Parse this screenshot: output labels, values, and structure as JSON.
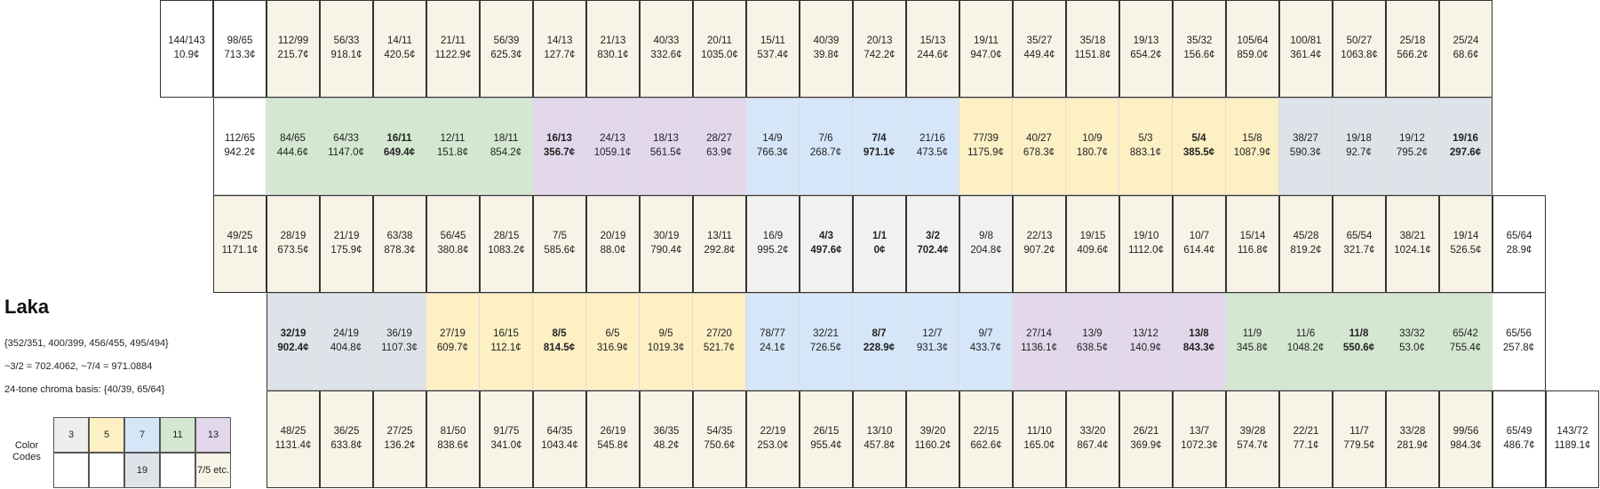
{
  "title": "Laka",
  "info": [
    "{352/351, 400/399, 456/455, 495/494}",
    "~3/2 = 702.4062, ~7/4 = 971.0884",
    "24-tone chroma basis: {40/39, 65/64}"
  ],
  "legend": {
    "label": "Color Codes",
    "cells": [
      {
        "text": "3",
        "color": "#eeeeee"
      },
      {
        "text": "5",
        "color": "#fdf0c4"
      },
      {
        "text": "7",
        "color": "#d6e6f9"
      },
      {
        "text": "11",
        "color": "#d4e8d1"
      },
      {
        "text": "13",
        "color": "#e3d7ec"
      },
      {
        "text": "",
        "color": "#ffffff"
      },
      {
        "text": "",
        "color": "#ffffff"
      },
      {
        "text": "19",
        "color": "#dde3e9"
      },
      {
        "text": "",
        "color": "#ffffff"
      },
      {
        "text": "7/5 etc.",
        "color": "#f7f3e6"
      }
    ]
  },
  "colors": {
    "w": "#ffffff",
    "c": "#f7f3e6",
    "g": "#f1f1f1",
    "y": "#fdf0c4",
    "b": "#d6e6f9",
    "gr": "#d4e8d1",
    "p": "#e3d7ec",
    "s": "#dde3e9"
  },
  "rows": [
    {
      "start": 0,
      "cells": [
        {
          "r": "144/143",
          "c": "10.9¢",
          "k": "w"
        },
        {
          "r": "98/65",
          "c": "713.3¢",
          "k": "w"
        },
        {
          "r": "112/99",
          "c": "215.7¢",
          "k": "c"
        },
        {
          "r": "56/33",
          "c": "918.1¢",
          "k": "c"
        },
        {
          "r": "14/11",
          "c": "420.5¢",
          "k": "c"
        },
        {
          "r": "21/11",
          "c": "1122.9¢",
          "k": "c"
        },
        {
          "r": "56/39",
          "c": "625.3¢",
          "k": "c"
        },
        {
          "r": "14/13",
          "c": "127.7¢",
          "k": "c"
        },
        {
          "r": "21/13",
          "c": "830.1¢",
          "k": "c"
        },
        {
          "r": "40/33",
          "c": "332.6¢",
          "k": "c"
        },
        {
          "r": "20/11",
          "c": "1035.0¢",
          "k": "c"
        },
        {
          "r": "15/11",
          "c": "537.4¢",
          "k": "c"
        },
        {
          "r": "40/39",
          "c": "39.8¢",
          "k": "c"
        },
        {
          "r": "20/13",
          "c": "742.2¢",
          "k": "c"
        },
        {
          "r": "15/13",
          "c": "244.6¢",
          "k": "c"
        },
        {
          "r": "19/11",
          "c": "947.0¢",
          "k": "c"
        },
        {
          "r": "35/27",
          "c": "449.4¢",
          "k": "c"
        },
        {
          "r": "35/18",
          "c": "1151.8¢",
          "k": "c"
        },
        {
          "r": "19/13",
          "c": "654.2¢",
          "k": "c"
        },
        {
          "r": "35/32",
          "c": "156.6¢",
          "k": "c"
        },
        {
          "r": "105/64",
          "c": "859.0¢",
          "k": "c"
        },
        {
          "r": "100/81",
          "c": "361.4¢",
          "k": "c"
        },
        {
          "r": "50/27",
          "c": "1063.8¢",
          "k": "c"
        },
        {
          "r": "25/18",
          "c": "566.2¢",
          "k": "c"
        },
        {
          "r": "25/24",
          "c": "68.6¢",
          "k": "c"
        }
      ]
    },
    {
      "start": 1,
      "lit": true,
      "cells": [
        {
          "r": "112/65",
          "c": "942.2¢",
          "k": "w"
        },
        {
          "r": "84/65",
          "c": "444.6¢",
          "k": "gr"
        },
        {
          "r": "64/33",
          "c": "1147.0¢",
          "k": "gr"
        },
        {
          "r": "16/11",
          "c": "649.4¢",
          "k": "gr",
          "b": true
        },
        {
          "r": "12/11",
          "c": "151.8¢",
          "k": "gr"
        },
        {
          "r": "18/11",
          "c": "854.2¢",
          "k": "gr"
        },
        {
          "r": "16/13",
          "c": "356.7¢",
          "k": "p",
          "b": true
        },
        {
          "r": "24/13",
          "c": "1059.1¢",
          "k": "p"
        },
        {
          "r": "18/13",
          "c": "561.5¢",
          "k": "p"
        },
        {
          "r": "28/27",
          "c": "63.9¢",
          "k": "p"
        },
        {
          "r": "14/9",
          "c": "766.3¢",
          "k": "b"
        },
        {
          "r": "7/6",
          "c": "268.7¢",
          "k": "b"
        },
        {
          "r": "7/4",
          "c": "971.1¢",
          "k": "b",
          "b": true
        },
        {
          "r": "21/16",
          "c": "473.5¢",
          "k": "b"
        },
        {
          "r": "77/39",
          "c": "1175.9¢",
          "k": "y"
        },
        {
          "r": "40/27",
          "c": "678.3¢",
          "k": "y"
        },
        {
          "r": "10/9",
          "c": "180.7¢",
          "k": "y"
        },
        {
          "r": "5/3",
          "c": "883.1¢",
          "k": "y"
        },
        {
          "r": "5/4",
          "c": "385.5¢",
          "k": "y",
          "b": true
        },
        {
          "r": "15/8",
          "c": "1087.9¢",
          "k": "y"
        },
        {
          "r": "38/27",
          "c": "590.3¢",
          "k": "s"
        },
        {
          "r": "19/18",
          "c": "92.7¢",
          "k": "s"
        },
        {
          "r": "19/12",
          "c": "795.2¢",
          "k": "s"
        },
        {
          "r": "19/16",
          "c": "297.6¢",
          "k": "s",
          "b": true
        }
      ]
    },
    {
      "start": 1,
      "cells": [
        {
          "r": "49/25",
          "c": "1171.1¢",
          "k": "c"
        },
        {
          "r": "28/19",
          "c": "673.5¢",
          "k": "c"
        },
        {
          "r": "21/19",
          "c": "175.9¢",
          "k": "c"
        },
        {
          "r": "63/38",
          "c": "878.3¢",
          "k": "c"
        },
        {
          "r": "56/45",
          "c": "380.8¢",
          "k": "c"
        },
        {
          "r": "28/15",
          "c": "1083.2¢",
          "k": "c"
        },
        {
          "r": "7/5",
          "c": "585.6¢",
          "k": "c"
        },
        {
          "r": "20/19",
          "c": "88.0¢",
          "k": "c"
        },
        {
          "r": "30/19",
          "c": "790.4¢",
          "k": "c"
        },
        {
          "r": "13/11",
          "c": "292.8¢",
          "k": "c"
        },
        {
          "r": "16/9",
          "c": "995.2¢",
          "k": "g"
        },
        {
          "r": "4/3",
          "c": "497.6¢",
          "k": "g",
          "b": true
        },
        {
          "r": "1/1",
          "c": "0¢",
          "k": "g",
          "b": true
        },
        {
          "r": "3/2",
          "c": "702.4¢",
          "k": "g",
          "b": true
        },
        {
          "r": "9/8",
          "c": "204.8¢",
          "k": "g"
        },
        {
          "r": "22/13",
          "c": "907.2¢",
          "k": "c"
        },
        {
          "r": "19/15",
          "c": "409.6¢",
          "k": "c"
        },
        {
          "r": "19/10",
          "c": "1112.0¢",
          "k": "c"
        },
        {
          "r": "10/7",
          "c": "614.4¢",
          "k": "c"
        },
        {
          "r": "15/14",
          "c": "116.8¢",
          "k": "c"
        },
        {
          "r": "45/28",
          "c": "819.2¢",
          "k": "c"
        },
        {
          "r": "65/54",
          "c": "321.7¢",
          "k": "c"
        },
        {
          "r": "38/21",
          "c": "1024.1¢",
          "k": "c"
        },
        {
          "r": "19/14",
          "c": "526.5¢",
          "k": "c"
        },
        {
          "r": "65/64",
          "c": "28.9¢",
          "k": "w"
        }
      ]
    },
    {
      "start": 2,
      "lit": true,
      "cells": [
        {
          "r": "32/19",
          "c": "902.4¢",
          "k": "s",
          "b": true
        },
        {
          "r": "24/19",
          "c": "404.8¢",
          "k": "s"
        },
        {
          "r": "36/19",
          "c": "1107.3¢",
          "k": "s"
        },
        {
          "r": "27/19",
          "c": "609.7¢",
          "k": "y"
        },
        {
          "r": "16/15",
          "c": "112.1¢",
          "k": "y"
        },
        {
          "r": "8/5",
          "c": "814.5¢",
          "k": "y",
          "b": true
        },
        {
          "r": "6/5",
          "c": "316.9¢",
          "k": "y"
        },
        {
          "r": "9/5",
          "c": "1019.3¢",
          "k": "y"
        },
        {
          "r": "27/20",
          "c": "521.7¢",
          "k": "y"
        },
        {
          "r": "78/77",
          "c": "24.1¢",
          "k": "b"
        },
        {
          "r": "32/21",
          "c": "726.5¢",
          "k": "b"
        },
        {
          "r": "8/7",
          "c": "228.9¢",
          "k": "b",
          "b": true
        },
        {
          "r": "12/7",
          "c": "931.3¢",
          "k": "b"
        },
        {
          "r": "9/7",
          "c": "433.7¢",
          "k": "b"
        },
        {
          "r": "27/14",
          "c": "1136.1¢",
          "k": "p"
        },
        {
          "r": "13/9",
          "c": "638.5¢",
          "k": "p"
        },
        {
          "r": "13/12",
          "c": "140.9¢",
          "k": "p"
        },
        {
          "r": "13/8",
          "c": "843.3¢",
          "k": "p",
          "b": true
        },
        {
          "r": "11/9",
          "c": "345.8¢",
          "k": "gr"
        },
        {
          "r": "11/6",
          "c": "1048.2¢",
          "k": "gr"
        },
        {
          "r": "11/8",
          "c": "550.6¢",
          "k": "gr",
          "b": true
        },
        {
          "r": "33/32",
          "c": "53.0¢",
          "k": "gr"
        },
        {
          "r": "65/42",
          "c": "755.4¢",
          "k": "gr"
        },
        {
          "r": "65/56",
          "c": "257.8¢",
          "k": "w"
        }
      ]
    },
    {
      "start": 2,
      "cells": [
        {
          "r": "48/25",
          "c": "1131.4¢",
          "k": "c"
        },
        {
          "r": "36/25",
          "c": "633.8¢",
          "k": "c"
        },
        {
          "r": "27/25",
          "c": "136.2¢",
          "k": "c"
        },
        {
          "r": "81/50",
          "c": "838.6¢",
          "k": "c"
        },
        {
          "r": "91/75",
          "c": "341.0¢",
          "k": "c"
        },
        {
          "r": "64/35",
          "c": "1043.4¢",
          "k": "c"
        },
        {
          "r": "26/19",
          "c": "545.8¢",
          "k": "c"
        },
        {
          "r": "36/35",
          "c": "48.2¢",
          "k": "c"
        },
        {
          "r": "54/35",
          "c": "750.6¢",
          "k": "c"
        },
        {
          "r": "22/19",
          "c": "253.0¢",
          "k": "c"
        },
        {
          "r": "26/15",
          "c": "955.4¢",
          "k": "c"
        },
        {
          "r": "13/10",
          "c": "457.8¢",
          "k": "c"
        },
        {
          "r": "39/20",
          "c": "1160.2¢",
          "k": "c"
        },
        {
          "r": "22/15",
          "c": "662.6¢",
          "k": "c"
        },
        {
          "r": "11/10",
          "c": "165.0¢",
          "k": "c"
        },
        {
          "r": "33/20",
          "c": "867.4¢",
          "k": "c"
        },
        {
          "r": "26/21",
          "c": "369.9¢",
          "k": "c"
        },
        {
          "r": "13/7",
          "c": "1072.3¢",
          "k": "c"
        },
        {
          "r": "39/28",
          "c": "574.7¢",
          "k": "c"
        },
        {
          "r": "22/21",
          "c": "77.1¢",
          "k": "c"
        },
        {
          "r": "11/7",
          "c": "779.5¢",
          "k": "c"
        },
        {
          "r": "33/28",
          "c": "281.9¢",
          "k": "c"
        },
        {
          "r": "99/56",
          "c": "984.3¢",
          "k": "c"
        },
        {
          "r": "65/49",
          "c": "486.7¢",
          "k": "w"
        },
        {
          "r": "143/72",
          "c": "1189.1¢",
          "k": "w"
        }
      ]
    }
  ]
}
